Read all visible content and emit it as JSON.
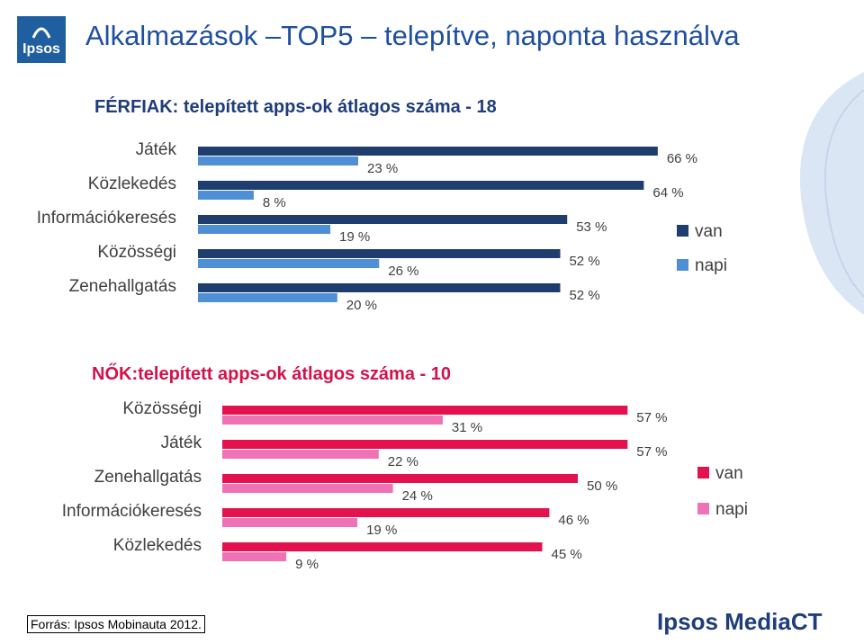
{
  "header": {
    "logo_text": "Ipsos",
    "title": "Alkalmazások –TOP5 – telepítve, naponta használva"
  },
  "colors": {
    "men_van": "#1f3e6e",
    "men_napi": "#4f8fd6",
    "women_van": "#e3124f",
    "women_napi": "#ef72b4",
    "men_title": "#1f3d7a",
    "women_title": "#d4114a",
    "text": "#404040"
  },
  "chart_data": [
    {
      "type": "bar",
      "orientation": "horizontal",
      "title": "FÉRFIAK: telepített apps-ok átlagos száma - 18",
      "categories": [
        "Játék",
        "Közlekedés",
        "Információkeresés",
        "Közösségi",
        "Zenehallgatás"
      ],
      "series": [
        {
          "name": "van",
          "values": [
            66,
            64,
            53,
            52,
            52
          ]
        },
        {
          "name": "napi",
          "values": [
            23,
            8,
            19,
            26,
            20
          ]
        }
      ],
      "unit": "%",
      "legend": "right",
      "grid": false
    },
    {
      "type": "bar",
      "orientation": "horizontal",
      "title": "NŐK:telepített apps-ok átlagos száma - 10",
      "categories": [
        "Közösségi",
        "Játék",
        "Zenehallgatás",
        "Információkeresés",
        "Közlekedés"
      ],
      "series": [
        {
          "name": "van",
          "values": [
            57,
            57,
            50,
            46,
            45
          ]
        },
        {
          "name": "napi",
          "values": [
            31,
            22,
            24,
            19,
            9
          ]
        }
      ],
      "unit": "%",
      "legend": "right",
      "grid": false
    }
  ],
  "footer": {
    "source": "Forrás: Ipsos Mobinauta 2012.",
    "brand": "Ipsos MediaCT"
  }
}
